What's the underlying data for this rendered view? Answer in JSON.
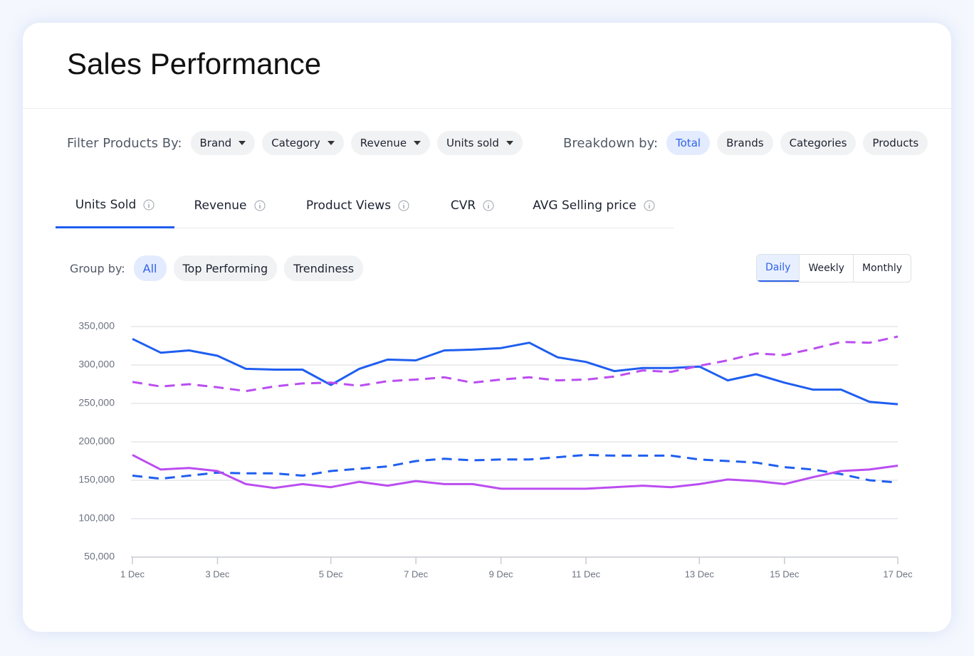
{
  "title": "Sales Performance",
  "filters": {
    "label": "Filter Products By:",
    "options": [
      "Brand",
      "Category",
      "Revenue",
      "Units sold"
    ]
  },
  "breakdown": {
    "label": "Breakdown by:",
    "options": [
      "Total",
      "Brands",
      "Categories",
      "Products"
    ]
  },
  "tabs": [
    "Units Sold",
    "Revenue",
    "Product Views",
    "CVR",
    "AVG Selling price"
  ],
  "group_by": {
    "label": "Group by:",
    "options": [
      "All",
      "Top Performing",
      "Trendiness"
    ]
  },
  "periods": [
    "Daily",
    "Weekly",
    "Monthly"
  ],
  "chart_data": {
    "type": "line",
    "categories": [
      "1 Dec",
      null,
      null,
      "3 Dec",
      null,
      null,
      null,
      "5 Dec",
      null,
      null,
      "7 Dec",
      null,
      null,
      "9 Dec",
      null,
      null,
      "11 Dec",
      null,
      null,
      null,
      "13 Dec",
      null,
      null,
      "15 Dec",
      null,
      null,
      null,
      "17 Dec"
    ],
    "series": [
      {
        "color": "#1f5ef0",
        "dashed": false,
        "values": [
          334000,
          316000,
          319000,
          312000,
          295000,
          294000,
          294000,
          274000,
          295000,
          307000,
          306000,
          319000,
          320000,
          322000,
          329000,
          310000,
          304000,
          292000,
          296000,
          296000,
          298000,
          280000,
          288000,
          277000,
          268000,
          268000,
          252000,
          249000
        ]
      },
      {
        "color": "#bb4df0",
        "dashed": true,
        "values": [
          278000,
          272000,
          275000,
          271000,
          266000,
          272000,
          276000,
          277000,
          273000,
          279000,
          281000,
          284000,
          277000,
          281000,
          284000,
          280000,
          281000,
          285000,
          293000,
          291000,
          299000,
          306000,
          315000,
          313000,
          321000,
          330000,
          329000,
          337000
        ]
      },
      {
        "color": "#1f5ef0",
        "dashed": true,
        "values": [
          156000,
          152000,
          156000,
          160000,
          159000,
          159000,
          156000,
          162000,
          165000,
          168000,
          175000,
          178000,
          176000,
          177000,
          177000,
          180000,
          183000,
          182000,
          182000,
          182000,
          177000,
          175000,
          173000,
          167000,
          164000,
          158000,
          150000,
          147000
        ]
      },
      {
        "color": "#bb4df0",
        "dashed": false,
        "values": [
          183000,
          164000,
          166000,
          162000,
          145000,
          140000,
          145000,
          141000,
          148000,
          143000,
          149000,
          145000,
          145000,
          139000,
          139000,
          139000,
          139000,
          141000,
          143000,
          141000,
          145000,
          151000,
          149000,
          145000,
          154000,
          162000,
          164000,
          169000
        ]
      }
    ],
    "ylim": [
      50000,
      350000
    ],
    "yticks": [
      {
        "value": 50000,
        "label": "50,000"
      },
      {
        "value": 100000,
        "label": "100,000"
      },
      {
        "value": 150000,
        "label": "150,000"
      },
      {
        "value": 200000,
        "label": "200,000"
      },
      {
        "value": 250000,
        "label": "250,000"
      },
      {
        "value": 300000,
        "label": "300,000"
      },
      {
        "value": 350000,
        "label": "350,000"
      }
    ],
    "grid": true
  }
}
